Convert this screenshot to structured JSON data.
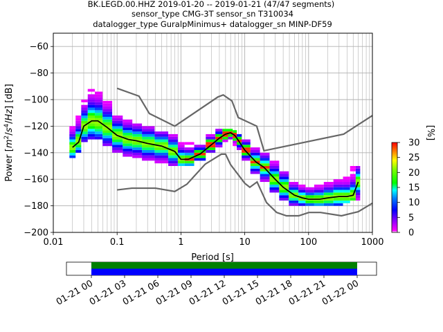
{
  "title": {
    "line1": "BK.LEGD.00.HHZ   2019-01-20 -- 2019-01-21  (47/47 segments)",
    "line2": "sensor_type CMG-3T sensor_sn T310034",
    "line3": "datalogger_type GuralpMinimus+ datalogger_sn MINP-DF59"
  },
  "colors": {
    "noise_model": "#666666",
    "mean_line": "#000000",
    "grid": "#b0b0b0",
    "coverage_top": "#008000",
    "coverage_bottom": "#0000ff"
  },
  "chart_data": [
    {
      "type": "heatmap",
      "name": "probabilistic power spectral density",
      "xlabel": "Period [s]",
      "ylabel": "Power [m²/s⁴/Hz] [dB]",
      "xscale": "log",
      "xlim": [
        0.01,
        1000
      ],
      "ylim": [
        -200,
        -50
      ],
      "x_ticks": [
        0.01,
        0.1,
        1,
        10,
        100,
        1000
      ],
      "x_tick_labels": [
        "0.01",
        "0.1",
        "1",
        "10",
        "100",
        "1000"
      ],
      "y_ticks": [
        -200,
        -180,
        -160,
        -140,
        -120,
        -100,
        -80,
        -60
      ],
      "y_tick_labels": [
        "−200",
        "−180",
        "−160",
        "−140",
        "−120",
        "−100",
        "−80",
        "−60"
      ],
      "grid": true,
      "colorbar": {
        "label": "[%]",
        "range": [
          0,
          30
        ],
        "ticks": [
          0,
          5,
          10,
          15,
          20,
          25,
          30
        ],
        "tick_labels": [
          "0",
          "5",
          "10",
          "15",
          "20",
          "25",
          "30"
        ]
      },
      "mean_curve": {
        "x": [
          0.02,
          0.025,
          0.03,
          0.04,
          0.05,
          0.07,
          0.1,
          0.15,
          0.2,
          0.3,
          0.5,
          0.8,
          1,
          1.3,
          2,
          3,
          4,
          5,
          6,
          7,
          8,
          10,
          15,
          20,
          30,
          40,
          60,
          80,
          100,
          150,
          200,
          300,
          400,
          500,
          600
        ],
        "y": [
          -136,
          -132,
          -120,
          -116,
          -116,
          -121,
          -127,
          -130,
          -131,
          -133,
          -135,
          -139,
          -145,
          -145,
          -141,
          -134,
          -129,
          -126,
          -125,
          -127,
          -131,
          -138,
          -147,
          -151,
          -160,
          -166,
          -172,
          -174,
          -175,
          -175,
          -174,
          -173,
          -173,
          -172,
          -162
        ]
      },
      "noise_model_high": {
        "x": [
          0.1,
          0.22,
          0.32,
          0.8,
          3.8,
          4.6,
          6.3,
          7.9,
          15.4,
          20,
          354.8,
          1000
        ],
        "y": [
          -91.5,
          -97.4,
          -110.5,
          -120,
          -98,
          -96.5,
          -101,
          -113.5,
          -120,
          -138.5,
          -126,
          -112
        ]
      },
      "noise_model_low": {
        "x": [
          0.1,
          0.17,
          0.4,
          0.8,
          1.24,
          2.4,
          4.3,
          5,
          6,
          10,
          12,
          15.6,
          21.9,
          31.6,
          45,
          70,
          101,
          154,
          328,
          600,
          1000
        ],
        "y": [
          -168,
          -166.7,
          -166.7,
          -169.2,
          -163.7,
          -148.6,
          -141.1,
          -141.1,
          -149,
          -163,
          -166,
          -162,
          -177.5,
          -185,
          -187.5,
          -187.5,
          -185,
          -185,
          -187.5,
          -184.4,
          -178
        ]
      },
      "density": [
        {
          "x": 0.02,
          "low": -144,
          "high": -118,
          "peak": -136
        },
        {
          "x": 0.025,
          "low": -140,
          "high": -112,
          "peak": -131
        },
        {
          "x": 0.03,
          "low": -132,
          "high": -100,
          "peak": -120
        },
        {
          "x": 0.04,
          "low": -130,
          "high": -92,
          "peak": -116
        },
        {
          "x": 0.05,
          "low": -130,
          "high": -92,
          "peak": -117
        },
        {
          "x": 0.07,
          "low": -135,
          "high": -102,
          "peak": -121
        },
        {
          "x": 0.1,
          "low": -140,
          "high": -112,
          "peak": -127
        },
        {
          "x": 0.15,
          "low": -143,
          "high": -116,
          "peak": -130
        },
        {
          "x": 0.2,
          "low": -144,
          "high": -118,
          "peak": -131
        },
        {
          "x": 0.3,
          "low": -146,
          "high": -120,
          "peak": -133
        },
        {
          "x": 0.5,
          "low": -148,
          "high": -124,
          "peak": -135
        },
        {
          "x": 0.8,
          "low": -150,
          "high": -126,
          "peak": -139
        },
        {
          "x": 1,
          "low": -150,
          "high": -130,
          "peak": -145
        },
        {
          "x": 1.3,
          "low": -150,
          "high": -132,
          "peak": -145
        },
        {
          "x": 2,
          "low": -146,
          "high": -132,
          "peak": -141
        },
        {
          "x": 3,
          "low": -140,
          "high": -126,
          "peak": -134
        },
        {
          "x": 4,
          "low": -136,
          "high": -122,
          "peak": -129
        },
        {
          "x": 5,
          "low": -132,
          "high": -122,
          "peak": -126
        },
        {
          "x": 6,
          "low": -132,
          "high": -122,
          "peak": -125
        },
        {
          "x": 7,
          "low": -135,
          "high": -124,
          "peak": -127
        },
        {
          "x": 8,
          "low": -140,
          "high": -126,
          "peak": -131
        },
        {
          "x": 10,
          "low": -146,
          "high": -130,
          "peak": -138
        },
        {
          "x": 15,
          "low": -156,
          "high": -136,
          "peak": -147
        },
        {
          "x": 20,
          "low": -162,
          "high": -140,
          "peak": -151
        },
        {
          "x": 30,
          "low": -170,
          "high": -146,
          "peak": -160
        },
        {
          "x": 40,
          "low": -176,
          "high": -152,
          "peak": -166
        },
        {
          "x": 60,
          "low": -180,
          "high": -162,
          "peak": -172
        },
        {
          "x": 80,
          "low": -180,
          "high": -164,
          "peak": -174
        },
        {
          "x": 100,
          "low": -180,
          "high": -164,
          "peak": -175
        },
        {
          "x": 150,
          "low": -180,
          "high": -162,
          "peak": -175
        },
        {
          "x": 200,
          "low": -180,
          "high": -160,
          "peak": -174
        },
        {
          "x": 300,
          "low": -180,
          "high": -158,
          "peak": -173
        },
        {
          "x": 400,
          "low": -178,
          "high": -156,
          "peak": -173
        },
        {
          "x": 500,
          "low": -176,
          "high": -150,
          "peak": -172
        },
        {
          "x": 600,
          "low": -176,
          "high": -150,
          "peak": -162
        }
      ]
    },
    {
      "type": "bar",
      "name": "data coverage",
      "x_tick_labels": [
        "01-21 00",
        "01-21 03",
        "01-21 06",
        "01-21 09",
        "01-21 12",
        "01-21 15",
        "01-21 18",
        "01-21 21",
        "01-22 00"
      ],
      "xlim": [
        "2019-01-20 21:45",
        "2019-01-22 01:45"
      ],
      "segments": [
        {
          "track": "top",
          "start": "2019-01-21 00:00",
          "end": "2019-01-22 00:00"
        },
        {
          "track": "bottom",
          "start": "2019-01-21 00:00",
          "end": "2019-01-22 00:00"
        }
      ]
    }
  ]
}
